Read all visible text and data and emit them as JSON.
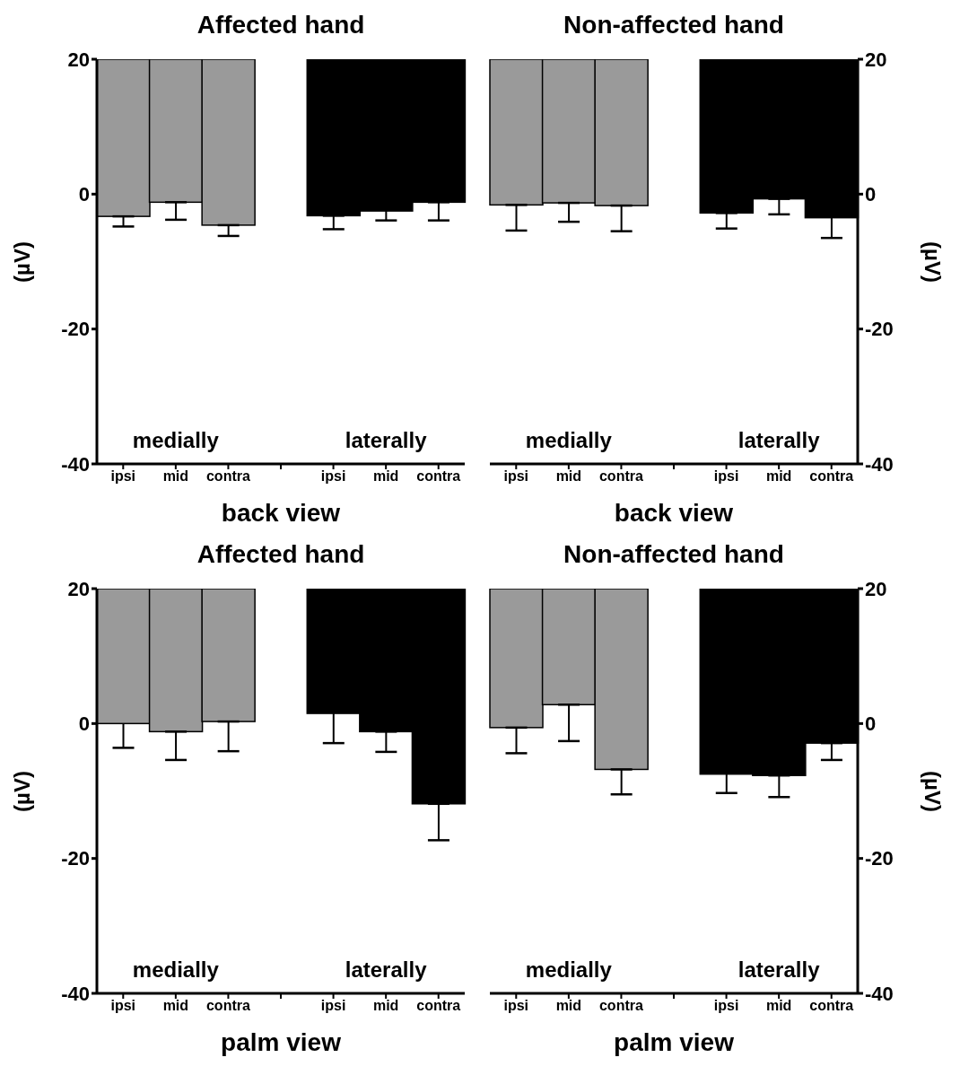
{
  "chart_data": [
    {
      "type": "bar",
      "title": "Affected hand",
      "xlabel": "back view",
      "ylabel": "(µV)",
      "categories": [
        "ipsi",
        "mid",
        "contra",
        null,
        "ipsi",
        "mid",
        "contra"
      ],
      "colors": [
        "#9a9a9a",
        "#9a9a9a",
        "#9a9a9a",
        null,
        "#000000",
        "#000000",
        "#000000"
      ],
      "series": [
        {
          "base": [
            20,
            20,
            20,
            null,
            20,
            20,
            20
          ],
          "values": [
            -23.3,
            -21.2,
            -24.6,
            null,
            -23.2,
            -22.5,
            -21.2
          ],
          "errors": [
            [
              -4.8,
              -3.3
            ],
            [
              -3.8,
              -1.2
            ],
            [
              -6.2,
              -4.6
            ],
            null,
            [
              -5.2,
              -3.2
            ],
            [
              -3.9,
              -2.5
            ],
            [
              -3.9,
              -1.2
            ]
          ]
        }
      ],
      "ylim": [
        -40,
        20
      ],
      "yticks": [
        -40,
        -20,
        0,
        20
      ],
      "annotations": [
        "medially",
        "laterally"
      ]
    },
    {
      "type": "bar",
      "title": "Non-affected hand",
      "xlabel": "back view",
      "y2label": "(µV)",
      "categories": [
        "ipsi",
        "mid",
        "contra",
        null,
        "ipsi",
        "mid",
        "contra"
      ],
      "colors": [
        "#9a9a9a",
        "#9a9a9a",
        "#9a9a9a",
        null,
        "#000000",
        "#000000",
        "#000000"
      ],
      "series": [
        {
          "axis": "y2",
          "base": [
            20,
            20,
            20,
            null,
            20,
            20,
            20
          ],
          "values": [
            -21.6,
            -21.3,
            -21.7,
            null,
            -22.8,
            -20.7,
            -23.5
          ],
          "errors": [
            [
              -5.4,
              -1.6
            ],
            [
              -4.1,
              -1.3
            ],
            [
              -5.5,
              -1.7
            ],
            null,
            [
              -5.1,
              -2.8
            ],
            [
              -3.0,
              -0.7
            ],
            [
              -6.5,
              -3.5
            ]
          ]
        }
      ],
      "y2lim": [
        -40,
        20
      ],
      "y2ticks": [
        -40,
        -20,
        0,
        20
      ],
      "annotations": [
        "medially",
        "laterally"
      ]
    },
    {
      "type": "bar",
      "title": "Affected hand",
      "xlabel": "palm view",
      "ylabel": "(µV)",
      "categories": [
        "ipsi",
        "mid",
        "contra",
        null,
        "ipsi",
        "mid",
        "contra"
      ],
      "colors": [
        "#9a9a9a",
        "#9a9a9a",
        "#9a9a9a",
        null,
        "#000000",
        "#000000",
        "#000000"
      ],
      "series": [
        {
          "base": [
            20,
            20,
            20,
            null,
            20,
            20,
            20
          ],
          "values": [
            -20.0,
            -21.2,
            -19.7,
            null,
            -18.5,
            -21.2,
            -31.9
          ],
          "errors": [
            [
              -3.6,
              0.0
            ],
            [
              -5.4,
              -1.2
            ],
            [
              -4.1,
              0.3
            ],
            null,
            [
              -2.9,
              1.5
            ],
            [
              -4.2,
              -1.2
            ],
            [
              -17.3,
              -11.9
            ]
          ]
        }
      ],
      "ylim": [
        -40,
        20
      ],
      "yticks": [
        -40,
        -20,
        0,
        20
      ],
      "annotations": [
        "medially",
        "laterally"
      ]
    },
    {
      "type": "bar",
      "title": "Non-affected hand",
      "xlabel": "palm view",
      "y2label": "(µV)",
      "categories": [
        "ipsi",
        "mid",
        "contra",
        null,
        "ipsi",
        "mid",
        "contra"
      ],
      "colors": [
        "#9a9a9a",
        "#9a9a9a",
        "#9a9a9a",
        null,
        "#000000",
        "#000000",
        "#000000"
      ],
      "series": [
        {
          "axis": "y2",
          "base": [
            20,
            20,
            20,
            null,
            20,
            20,
            20
          ],
          "values": [
            -20.6,
            -17.2,
            -26.8,
            null,
            -27.5,
            -27.7,
            -22.9
          ],
          "errors": [
            [
              -4.4,
              -0.6
            ],
            [
              -2.6,
              2.8
            ],
            [
              -10.5,
              -6.8
            ],
            null,
            [
              -10.3,
              -7.5
            ],
            [
              -10.9,
              -7.7
            ],
            [
              -5.4,
              -2.9
            ]
          ]
        }
      ],
      "y2lim": [
        -40,
        20
      ],
      "y2ticks": [
        -40,
        -20,
        0,
        20
      ],
      "annotations": [
        "medially",
        "laterally"
      ]
    }
  ]
}
